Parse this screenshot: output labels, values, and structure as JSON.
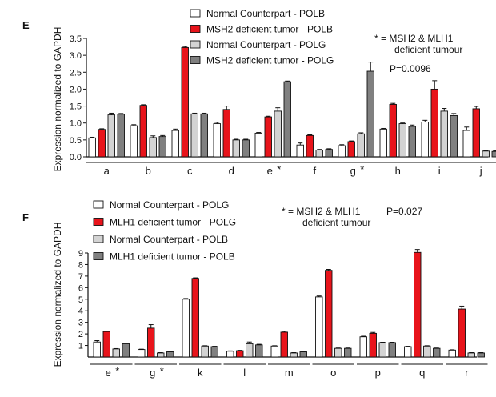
{
  "chart_data": [
    {
      "type": "bar",
      "panel_label": "E",
      "ylabel": "Expression normalized to GAPDH",
      "ylim": [
        0,
        3.5
      ],
      "yticks": [
        "0.0",
        "0.5",
        "1.0",
        "1.5",
        "2.0",
        "2.5",
        "3.0",
        "3.5"
      ],
      "categories": [
        "a",
        "b",
        "c",
        "d",
        "e",
        "f",
        "g",
        "h",
        "i",
        "j"
      ],
      "star_categories": [
        "e",
        "g"
      ],
      "red_categories": [
        "e",
        "g"
      ],
      "star_symbol": "*",
      "series": [
        {
          "name": "Normal Counterpart - POLB",
          "color": "#ffffff",
          "values": [
            0.56,
            0.92,
            0.78,
            0.98,
            0.7,
            0.35,
            0.33,
            0.82,
            1.03,
            0.78
          ],
          "errors": [
            0.02,
            0.03,
            0.04,
            0.04,
            0.02,
            0.06,
            0.03,
            0.02,
            0.05,
            0.1
          ]
        },
        {
          "name": "MSH2 deficient tumor - POLB",
          "color": "#e8141b",
          "values": [
            0.81,
            1.52,
            3.23,
            1.4,
            1.18,
            0.63,
            0.45,
            1.55,
            2.0,
            1.42
          ],
          "errors": [
            0.02,
            0.02,
            0.03,
            0.1,
            0.02,
            0.02,
            0.02,
            0.03,
            0.25,
            0.07
          ]
        },
        {
          "name": "Normal Counterpart - POLG",
          "color": "#d3d3d3",
          "values": [
            1.24,
            0.57,
            1.27,
            0.5,
            1.35,
            0.2,
            0.68,
            0.98,
            1.35,
            0.17
          ],
          "errors": [
            0.05,
            0.05,
            0.02,
            0.02,
            0.1,
            0.02,
            0.03,
            0.02,
            0.08,
            0.02
          ]
        },
        {
          "name": "MSH2 deficient tumor - POLG",
          "color": "#808080",
          "values": [
            1.26,
            0.6,
            1.27,
            0.5,
            2.22,
            0.22,
            2.53,
            0.9,
            1.22,
            0.16
          ],
          "errors": [
            0.02,
            0.03,
            0.02,
            0.02,
            0.02,
            0.02,
            0.27,
            0.04,
            0.06,
            0.02
          ]
        }
      ],
      "annotation": [
        "* = MSH2 & MLH1",
        "deficient tumour"
      ],
      "pvalue": "P=0.0096"
    },
    {
      "type": "bar",
      "panel_label": "F",
      "ylabel": "Expression normalized to GAPDH",
      "ylim": [
        0,
        9
      ],
      "yticks": [
        "1",
        "2",
        "3",
        "4",
        "5",
        "6",
        "7",
        "8",
        "9"
      ],
      "categories": [
        "e",
        "g",
        "k",
        "l",
        "m",
        "o",
        "p",
        "q",
        "r"
      ],
      "star_categories": [
        "e",
        "g"
      ],
      "red_categories": [
        "e",
        "g"
      ],
      "star_symbol": "*",
      "series": [
        {
          "name": "Normal Counterpart - POLG",
          "color": "#ffffff",
          "values": [
            1.3,
            0.65,
            5.0,
            0.5,
            0.95,
            5.2,
            1.75,
            0.9,
            0.6
          ],
          "errors": [
            0.12,
            0.03,
            0.06,
            0.03,
            0.03,
            0.08,
            0.05,
            0.03,
            0.03
          ]
        },
        {
          "name": "MLH1 deficient tumor - POLG",
          "color": "#e8141b",
          "values": [
            2.2,
            2.5,
            6.8,
            0.55,
            2.15,
            7.5,
            2.05,
            9.05,
            4.15
          ],
          "errors": [
            0.03,
            0.3,
            0.05,
            0.03,
            0.08,
            0.08,
            0.08,
            0.25,
            0.25
          ]
        },
        {
          "name": "Normal Counterpart - POLB",
          "color": "#d3d3d3",
          "values": [
            0.7,
            0.35,
            0.95,
            1.15,
            0.35,
            0.75,
            1.25,
            0.95,
            0.35
          ],
          "errors": [
            0.03,
            0.03,
            0.03,
            0.15,
            0.03,
            0.03,
            0.03,
            0.03,
            0.03
          ]
        },
        {
          "name": "MLH1 deficient tumor - POLB",
          "color": "#808080",
          "values": [
            1.15,
            0.45,
            0.9,
            1.05,
            0.45,
            0.75,
            1.25,
            0.75,
            0.35
          ],
          "errors": [
            0.03,
            0.03,
            0.03,
            0.05,
            0.03,
            0.03,
            0.03,
            0.03,
            0.03
          ]
        }
      ],
      "annotation": [
        "* = MSH2 & MLH1",
        "deficient tumour"
      ],
      "pvalue": "P=0.027"
    }
  ]
}
